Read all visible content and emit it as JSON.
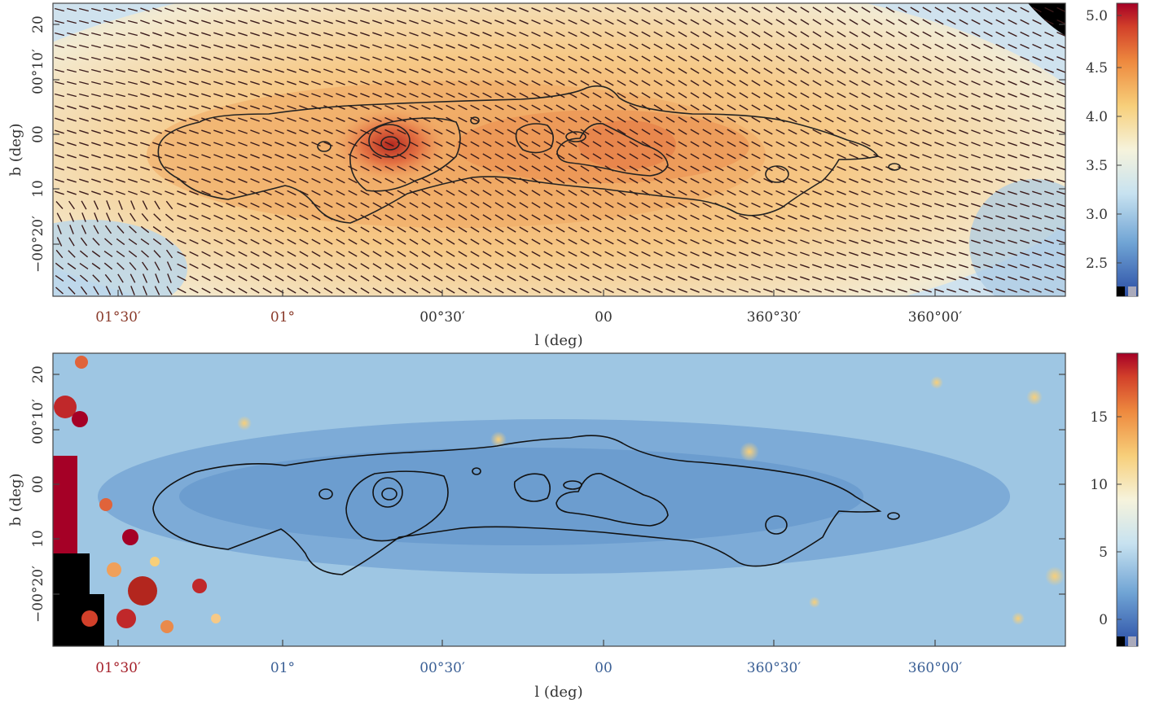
{
  "chart_data": [
    {
      "type": "heatmap",
      "panel": "top",
      "xlabel": "l (deg)",
      "ylabel": "b (deg)",
      "x_ticks": [
        "01°30′",
        "01°",
        "00°30′",
        "00",
        "360°30′",
        "360°00′"
      ],
      "y_ticks": [
        "20",
        "00°10′",
        "00",
        "10",
        "−00°20′"
      ],
      "colorbar_ticks": [
        "2.5",
        "3.0",
        "3.5",
        "4.0",
        "4.5",
        "5.0"
      ],
      "colorbar_range": [
        2.2,
        5.1
      ],
      "colormap": "blue-white-yellow-red",
      "overlays": [
        "contours",
        "polarization vectors"
      ],
      "grid": false
    },
    {
      "type": "heatmap",
      "panel": "bottom",
      "xlabel": "l (deg)",
      "ylabel": "b (deg)",
      "x_ticks": [
        "01°30′",
        "01°",
        "00°30′",
        "00",
        "360°30′",
        "360°00′"
      ],
      "y_ticks": [
        "20",
        "00°10′",
        "00",
        "10",
        "−00°20′"
      ],
      "colorbar_ticks": [
        "0",
        "5",
        "10",
        "15"
      ],
      "colorbar_range": [
        -2,
        19.5
      ],
      "colormap": "blue-white-yellow-red",
      "overlays": [
        "contours"
      ],
      "grid": false
    }
  ],
  "colors": {
    "low": "#2c4fa6",
    "mid_low": "#8fbde0",
    "mid": "#f3f1e6",
    "mid_high": "#f5c473",
    "high": "#e8692e",
    "max": "#a50026",
    "contour": "#222222",
    "vector": "#3a1a1a"
  }
}
